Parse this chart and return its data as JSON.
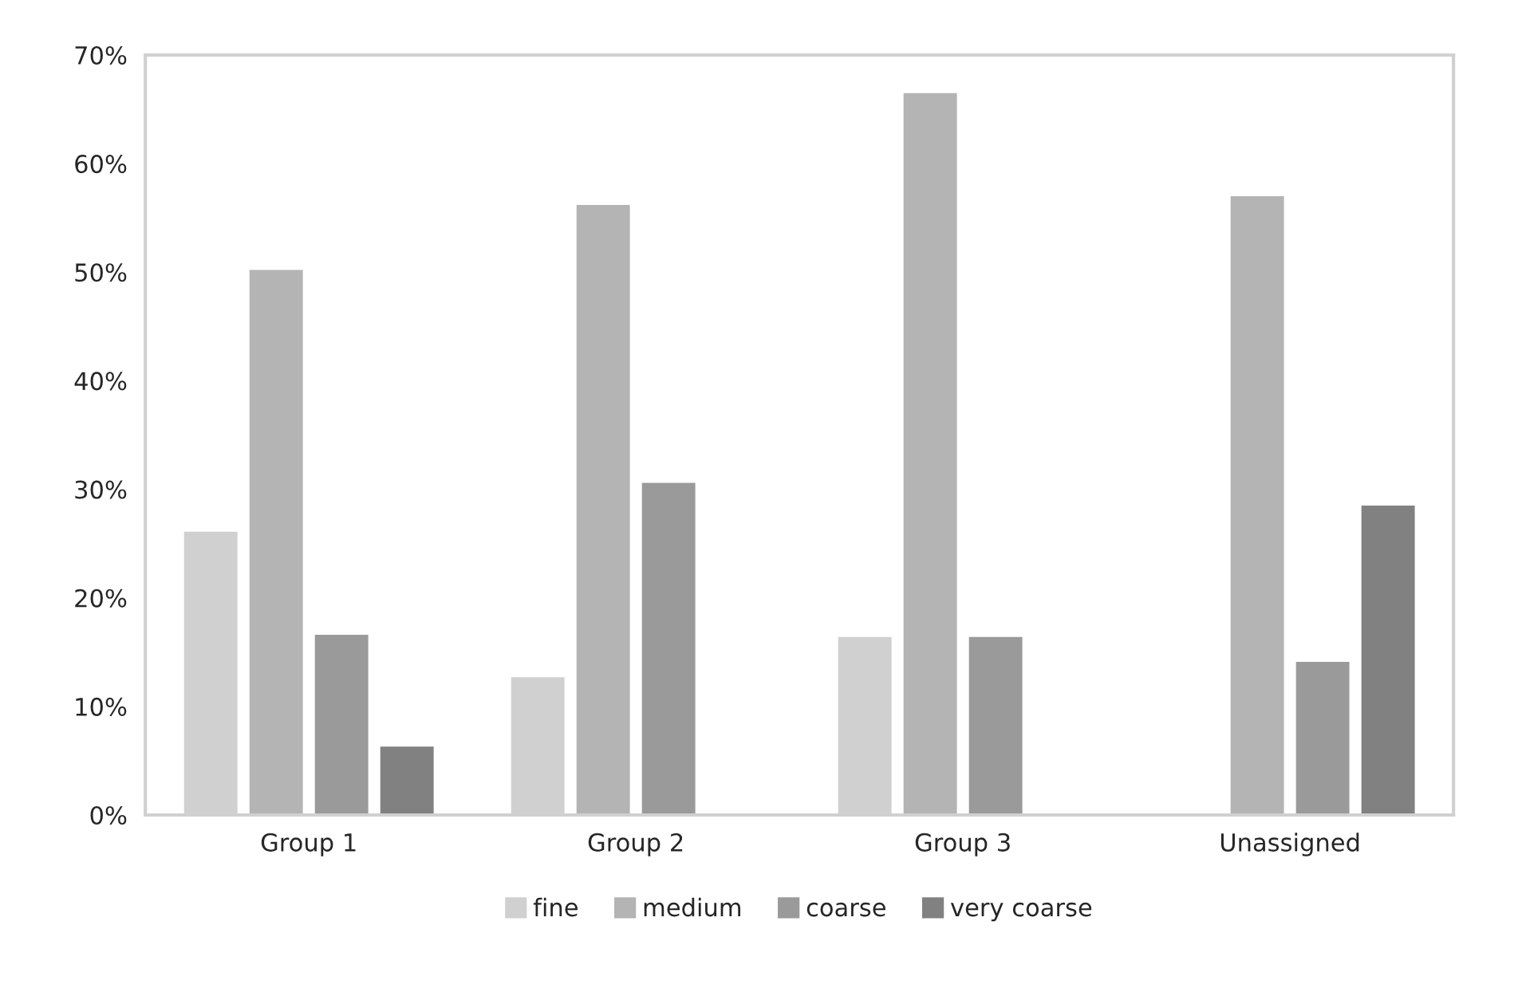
{
  "chart_data": {
    "type": "bar",
    "categories": [
      "Group 1",
      "Group 2",
      "Group 3",
      "Unassigned"
    ],
    "series": [
      {
        "name": "fine",
        "color": "#d0d0d0",
        "values": [
          26.2,
          12.8,
          16.5,
          null
        ]
      },
      {
        "name": "medium",
        "color": "#b4b4b4",
        "values": [
          50.3,
          56.3,
          66.6,
          57.1
        ]
      },
      {
        "name": "coarse",
        "color": "#9a9a9a",
        "values": [
          16.7,
          30.7,
          16.5,
          14.2
        ]
      },
      {
        "name": "very coarse",
        "color": "#818181",
        "values": [
          6.4,
          null,
          null,
          28.6
        ]
      }
    ],
    "ylim": [
      0,
      70
    ],
    "yticks": [
      {
        "value": 0,
        "label": "0%"
      },
      {
        "value": 10,
        "label": "10%"
      },
      {
        "value": 20,
        "label": "20%"
      },
      {
        "value": 30,
        "label": "30%"
      },
      {
        "value": 40,
        "label": "40%"
      },
      {
        "value": 50,
        "label": "50%"
      },
      {
        "value": 60,
        "label": "60%"
      },
      {
        "value": 70,
        "label": "70%"
      }
    ],
    "grid": false,
    "legend": "bottom"
  }
}
